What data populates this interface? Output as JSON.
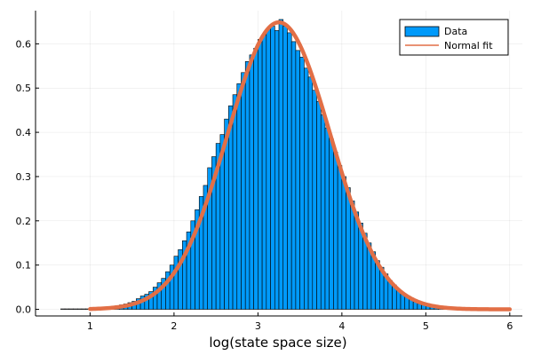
{
  "chart_data": {
    "type": "bar",
    "xlabel": "log(state space size)",
    "ylabel": "",
    "xlim": [
      0.35,
      6.15
    ],
    "ylim": [
      -0.015,
      0.675
    ],
    "x_ticks": [
      1,
      2,
      3,
      4,
      5,
      6
    ],
    "y_ticks": [
      0.0,
      0.1,
      0.2,
      0.3,
      0.4,
      0.5,
      0.6
    ],
    "y_tick_labels": [
      "0.0",
      "0.1",
      "0.2",
      "0.3",
      "0.4",
      "0.5",
      "0.6"
    ],
    "grid": true,
    "legend_position": "top-right",
    "bin_width": 0.05,
    "hist_range": [
      0.65,
      5.7
    ],
    "series": [
      {
        "name": "Data",
        "kind": "histogram",
        "color": "#009AFA",
        "bin_centers": [
          0.675,
          0.725,
          0.775,
          0.825,
          0.875,
          0.925,
          0.975,
          1.025,
          1.075,
          1.125,
          1.175,
          1.225,
          1.275,
          1.325,
          1.375,
          1.425,
          1.475,
          1.525,
          1.575,
          1.625,
          1.675,
          1.725,
          1.775,
          1.825,
          1.875,
          1.925,
          1.975,
          2.025,
          2.075,
          2.125,
          2.175,
          2.225,
          2.275,
          2.325,
          2.375,
          2.425,
          2.475,
          2.525,
          2.575,
          2.625,
          2.675,
          2.725,
          2.775,
          2.825,
          2.875,
          2.925,
          2.975,
          3.025,
          3.075,
          3.125,
          3.175,
          3.225,
          3.275,
          3.325,
          3.375,
          3.425,
          3.475,
          3.525,
          3.575,
          3.625,
          3.675,
          3.725,
          3.775,
          3.825,
          3.875,
          3.925,
          3.975,
          4.025,
          4.075,
          4.125,
          4.175,
          4.225,
          4.275,
          4.325,
          4.375,
          4.425,
          4.475,
          4.525,
          4.575,
          4.625,
          4.675,
          4.725,
          4.775,
          4.825,
          4.875,
          4.925,
          4.975,
          5.025,
          5.075,
          5.125,
          5.175,
          5.225,
          5.275,
          5.325,
          5.375,
          5.425,
          5.475,
          5.525,
          5.575,
          5.625,
          5.675
        ],
        "values": [
          0.001,
          0.001,
          0.001,
          0.001,
          0.001,
          0.001,
          0.001,
          0.002,
          0.002,
          0.003,
          0.004,
          0.005,
          0.006,
          0.008,
          0.01,
          0.012,
          0.015,
          0.018,
          0.024,
          0.03,
          0.034,
          0.04,
          0.05,
          0.06,
          0.07,
          0.085,
          0.1,
          0.12,
          0.135,
          0.155,
          0.175,
          0.2,
          0.225,
          0.255,
          0.28,
          0.32,
          0.345,
          0.375,
          0.395,
          0.43,
          0.46,
          0.485,
          0.51,
          0.535,
          0.56,
          0.575,
          0.59,
          0.61,
          0.62,
          0.635,
          0.64,
          0.63,
          0.655,
          0.64,
          0.625,
          0.605,
          0.585,
          0.57,
          0.545,
          0.525,
          0.495,
          0.47,
          0.44,
          0.41,
          0.385,
          0.355,
          0.325,
          0.3,
          0.275,
          0.245,
          0.22,
          0.195,
          0.172,
          0.15,
          0.13,
          0.11,
          0.095,
          0.08,
          0.065,
          0.055,
          0.045,
          0.036,
          0.028,
          0.022,
          0.017,
          0.013,
          0.01,
          0.008,
          0.006,
          0.004,
          0.003,
          0.002,
          0.002,
          0.001,
          0.001,
          0.001,
          0.001,
          0.001,
          0.001,
          0.001,
          0.001
        ]
      },
      {
        "name": "Normal fit",
        "kind": "line",
        "color": "#E26F46",
        "mean": 3.25,
        "std": 0.615,
        "x_range": [
          1,
          6
        ]
      }
    ]
  }
}
